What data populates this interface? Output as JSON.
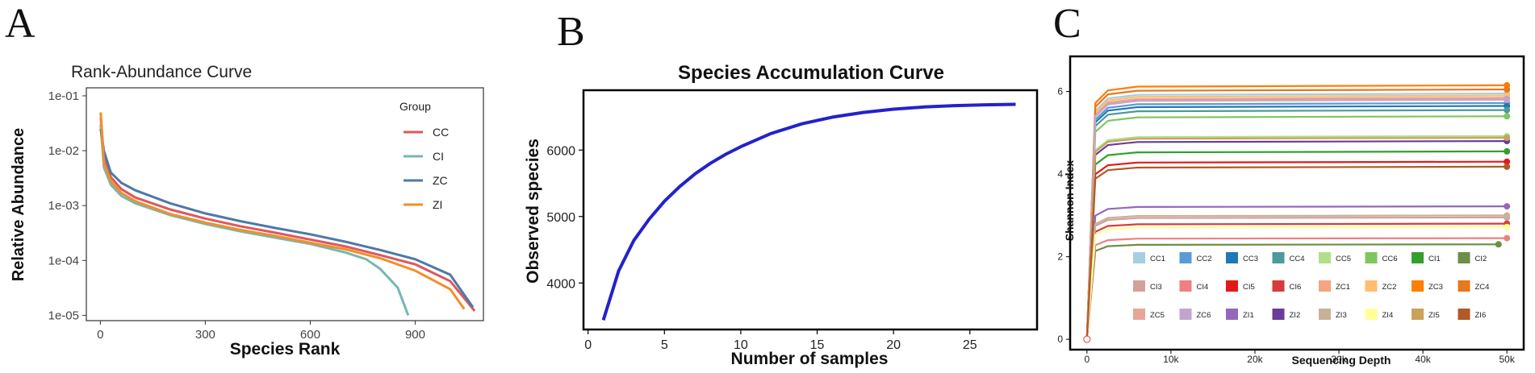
{
  "panels": {
    "a": "A",
    "b": "B",
    "c": "C"
  },
  "chart_data": [
    {
      "type": "line",
      "title": "Rank-Abundance Curve",
      "xlabel": "Species Rank",
      "ylabel": "Relative Abundance",
      "y_scale": "log",
      "xlim": [
        -40,
        1095
      ],
      "ylim": [
        8e-06,
        0.14
      ],
      "x_ticks": [
        0,
        300,
        600,
        900
      ],
      "x_tick_labels": [
        "0",
        "300",
        "600",
        "900"
      ],
      "y_ticks": [
        1e-05,
        0.0001,
        0.001,
        0.01,
        0.1
      ],
      "y_tick_labels": [
        "1e-05",
        "1e-04",
        "1e-03",
        "1e-02",
        "1e-01"
      ],
      "grid": false,
      "legend": {
        "title": "Group",
        "position": "top-right"
      },
      "series": [
        {
          "name": "CC",
          "color": "#e15759",
          "x": [
            1,
            10,
            30,
            60,
            100,
            200,
            300,
            400,
            500,
            600,
            700,
            800,
            900,
            1000,
            1070
          ],
          "y": [
            0.04,
            0.008,
            0.0033,
            0.002,
            0.0014,
            0.00085,
            0.00058,
            0.00042,
            0.00032,
            0.00024,
            0.00018,
            0.000125,
            8.5e-05,
            4.2e-05,
            1.2e-05
          ]
        },
        {
          "name": "CI",
          "color": "#76b7b2",
          "x": [
            1,
            10,
            30,
            60,
            100,
            200,
            300,
            400,
            500,
            600,
            700,
            760,
            800,
            850,
            880
          ],
          "y": [
            0.03,
            0.005,
            0.0024,
            0.0015,
            0.0011,
            0.00067,
            0.00046,
            0.00034,
            0.00026,
            0.0002,
            0.00014,
            0.000105,
            7e-05,
            3.2e-05,
            1e-05
          ]
        },
        {
          "name": "ZC",
          "color": "#4e79a7",
          "x": [
            1,
            10,
            30,
            60,
            100,
            200,
            300,
            400,
            500,
            600,
            700,
            800,
            900,
            1000,
            1065
          ],
          "y": [
            0.025,
            0.01,
            0.004,
            0.0026,
            0.0019,
            0.0011,
            0.00072,
            0.00052,
            0.00039,
            0.0003,
            0.00022,
            0.000155,
            0.000105,
            5.5e-05,
            1.4e-05
          ]
        },
        {
          "name": "ZI",
          "color": "#f28e2b",
          "x": [
            1,
            10,
            30,
            60,
            100,
            200,
            300,
            400,
            500,
            600,
            700,
            800,
            900,
            1000,
            1040
          ],
          "y": [
            0.05,
            0.006,
            0.0028,
            0.0017,
            0.0012,
            0.0007,
            0.00049,
            0.00036,
            0.00028,
            0.00021,
            0.00016,
            0.00011,
            6.5e-05,
            3e-05,
            1.3e-05
          ]
        }
      ]
    },
    {
      "type": "line",
      "title": "Species Accumulation Curve",
      "xlabel": "Number of samples",
      "ylabel": "Observed species",
      "xlim": [
        -0.3,
        29.4
      ],
      "ylim": [
        3300,
        6900
      ],
      "x_ticks": [
        0,
        5,
        10,
        15,
        20,
        25
      ],
      "y_ticks": [
        4000,
        5000,
        6000
      ],
      "grid": false,
      "series": [
        {
          "color": "#2222cc",
          "x": [
            1,
            2,
            3,
            4,
            5,
            6,
            7,
            8,
            9,
            10,
            12,
            14,
            16,
            18,
            20,
            22,
            24,
            26,
            28
          ],
          "y": [
            3440,
            4180,
            4640,
            4960,
            5230,
            5450,
            5640,
            5800,
            5935,
            6050,
            6250,
            6395,
            6495,
            6565,
            6615,
            6648,
            6668,
            6680,
            6688
          ]
        }
      ]
    },
    {
      "type": "line",
      "xlabel": "Sequencing Depth",
      "ylabel": "Shannon Index",
      "xlim": [
        -2000,
        52000
      ],
      "ylim": [
        -0.25,
        6.85
      ],
      "x_ticks": [
        0,
        10000,
        20000,
        30000,
        40000,
        50000
      ],
      "x_tick_labels": [
        "0",
        "10k",
        "20k",
        "30k",
        "40k",
        "50k"
      ],
      "y_ticks": [
        0,
        2,
        4,
        6
      ],
      "grid": false,
      "legend": {
        "position": "inside-bottom",
        "columns": 8
      },
      "series": [
        {
          "name": "CC1",
          "color": "#a6cee3",
          "final": 5.95
        },
        {
          "name": "CC2",
          "color": "#5b9bd5",
          "final": 5.72
        },
        {
          "name": "CC3",
          "color": "#1f78b4",
          "final": 5.65
        },
        {
          "name": "CC4",
          "color": "#4c9a9a",
          "final": 5.55
        },
        {
          "name": "CC5",
          "color": "#b2df8a",
          "final": 4.92
        },
        {
          "name": "CC6",
          "color": "#7fc65f",
          "final": 5.4
        },
        {
          "name": "CI1",
          "color": "#33a02c",
          "final": 4.55
        },
        {
          "name": "CI2",
          "color": "#6a8f46",
          "final": 2.3
        },
        {
          "name": "CI3",
          "color": "#d4a09a",
          "final": 2.95
        },
        {
          "name": "CI4",
          "color": "#f08080",
          "final": 2.45
        },
        {
          "name": "CI5",
          "color": "#e31a1c",
          "final": 4.3
        },
        {
          "name": "CI6",
          "color": "#d83b3b",
          "final": 2.8
        },
        {
          "name": "ZC1",
          "color": "#f4a582",
          "final": 5.85
        },
        {
          "name": "ZC2",
          "color": "#fdbf6f",
          "final": 5.9
        },
        {
          "name": "ZC3",
          "color": "#ff7f00",
          "final": 6.15
        },
        {
          "name": "ZC4",
          "color": "#e6781e",
          "final": 6.05
        },
        {
          "name": "ZC5",
          "color": "#e8a598",
          "final": 5.8
        },
        {
          "name": "ZC6",
          "color": "#c2a5cf",
          "final": 5.82
        },
        {
          "name": "ZI1",
          "color": "#9467bd",
          "final": 3.22
        },
        {
          "name": "ZI2",
          "color": "#6a3d9a",
          "final": 4.8
        },
        {
          "name": "ZI3",
          "color": "#c7b299",
          "final": 3.0
        },
        {
          "name": "ZI4",
          "color": "#ffff99",
          "final": 2.72
        },
        {
          "name": "ZI5",
          "color": "#c9a25c",
          "final": 4.88
        },
        {
          "name": "ZI6",
          "color": "#b15928",
          "final": 4.18
        }
      ]
    }
  ]
}
